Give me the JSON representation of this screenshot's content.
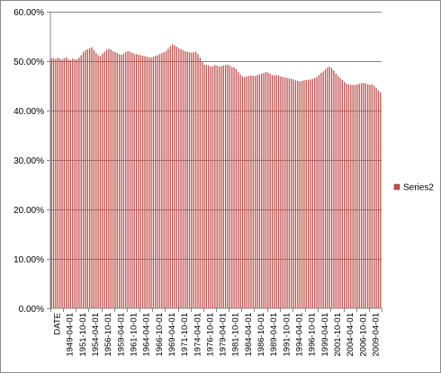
{
  "chart_data": {
    "type": "bar",
    "title": "",
    "xlabel": "",
    "ylabel": "",
    "ylim": [
      0,
      0.6
    ],
    "y_ticks": [
      0,
      0.1,
      0.2,
      0.3,
      0.4,
      0.5,
      0.6
    ],
    "y_tick_labels": [
      "0.00%",
      "10.00%",
      "20.00%",
      "30.00%",
      "40.00%",
      "50.00%",
      "60.00%"
    ],
    "grid": "horizontal",
    "legend_position": "right",
    "x_tick_labels": [
      "DATE",
      "1949-04-01",
      "1951-10-01",
      "1954-04-01",
      "1956-10-01",
      "1959-04-01",
      "1961-10-01",
      "1964-04-01",
      "1966-10-01",
      "1969-04-01",
      "1971-10-01",
      "1974-04-01",
      "1976-10-01",
      "1979-04-01",
      "1981-10-01",
      "1984-04-01",
      "1986-10-01",
      "1989-04-01",
      "1991-10-01",
      "1994-04-01",
      "1996-10-01",
      "1999-04-01",
      "2001-10-01",
      "2004-04-01",
      "2006-10-01",
      "2009-04-01"
    ],
    "series": [
      {
        "name": "Series2",
        "color": "#c0504d",
        "values": [
          0.505,
          0.506,
          0.504,
          0.507,
          0.505,
          0.503,
          0.506,
          0.508,
          0.504,
          0.502,
          0.505,
          0.503,
          0.504,
          0.507,
          0.512,
          0.518,
          0.522,
          0.524,
          0.526,
          0.528,
          0.522,
          0.517,
          0.512,
          0.51,
          0.515,
          0.519,
          0.523,
          0.525,
          0.523,
          0.52,
          0.518,
          0.516,
          0.514,
          0.513,
          0.515,
          0.518,
          0.52,
          0.519,
          0.517,
          0.515,
          0.514,
          0.513,
          0.512,
          0.511,
          0.51,
          0.509,
          0.508,
          0.507,
          0.509,
          0.511,
          0.512,
          0.514,
          0.516,
          0.518,
          0.52,
          0.525,
          0.53,
          0.534,
          0.532,
          0.529,
          0.526,
          0.524,
          0.522,
          0.52,
          0.519,
          0.518,
          0.517,
          0.518,
          0.519,
          0.514,
          0.507,
          0.498,
          0.493,
          0.492,
          0.491,
          0.489,
          0.49,
          0.492,
          0.491,
          0.489,
          0.49,
          0.491,
          0.492,
          0.493,
          0.491,
          0.488,
          0.487,
          0.484,
          0.478,
          0.473,
          0.469,
          0.468,
          0.469,
          0.47,
          0.471,
          0.47,
          0.47,
          0.472,
          0.473,
          0.475,
          0.476,
          0.478,
          0.477,
          0.474,
          0.472,
          0.471,
          0.472,
          0.471,
          0.469,
          0.468,
          0.467,
          0.466,
          0.465,
          0.464,
          0.463,
          0.461,
          0.46,
          0.459,
          0.46,
          0.461,
          0.462,
          0.462,
          0.463,
          0.464,
          0.466,
          0.468,
          0.472,
          0.476,
          0.479,
          0.483,
          0.487,
          0.489,
          0.486,
          0.481,
          0.475,
          0.47,
          0.466,
          0.462,
          0.458,
          0.455,
          0.453,
          0.452,
          0.452,
          0.452,
          0.453,
          0.454,
          0.455,
          0.456,
          0.455,
          0.453,
          0.452,
          0.453,
          0.45,
          0.446,
          0.441,
          0.437
        ]
      }
    ]
  }
}
